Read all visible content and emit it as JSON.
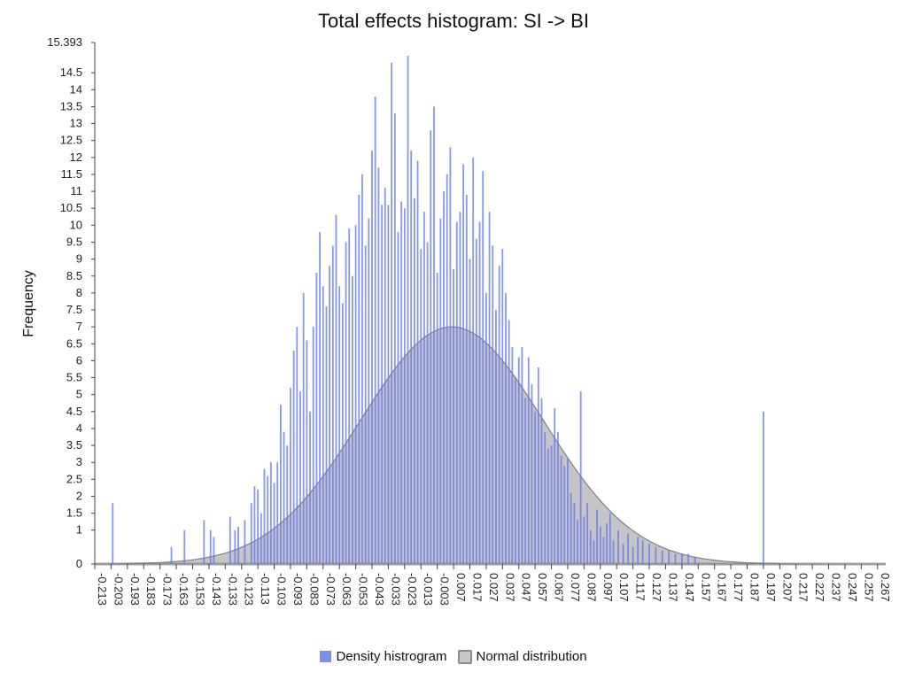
{
  "chart_data": {
    "type": "bar",
    "title": "Total effects histogram: SI -> BI",
    "xlabel": "",
    "ylabel": "Frequency",
    "xlim": [
      -0.213,
      0.272
    ],
    "ylim": [
      0,
      15.393
    ],
    "x_ticks": [
      "-0.213",
      "-0.203",
      "-0.193",
      "-0.183",
      "-0.173",
      "-0.163",
      "-0.153",
      "-0.143",
      "-0.133",
      "-0.123",
      "-0.113",
      "-0.103",
      "-0.093",
      "-0.083",
      "-0.073",
      "-0.063",
      "-0.053",
      "-0.043",
      "-0.033",
      "-0.023",
      "-0.013",
      "-0.003",
      "0.007",
      "0.017",
      "0.027",
      "0.037",
      "0.047",
      "0.057",
      "0.067",
      "0.077",
      "0.087",
      "0.097",
      "0.107",
      "0.117",
      "0.127",
      "0.137",
      "0.147",
      "0.157",
      "0.167",
      "0.177",
      "0.187",
      "0.197",
      "0.207",
      "0.217",
      "0.227",
      "0.237",
      "0.247",
      "0.257",
      "0.267"
    ],
    "y_ticks": [
      "0",
      "1",
      "1.5",
      "2",
      "2.5",
      "3",
      "3.5",
      "4",
      "4.5",
      "5",
      "5.5",
      "6",
      "6.5",
      "7",
      "7.5",
      "8",
      "8.5",
      "9",
      "9.5",
      "10",
      "10.5",
      "11",
      "11.5",
      "12",
      "12.5",
      "13",
      "13.5",
      "14",
      "14.5",
      "15.393"
    ],
    "series": [
      {
        "name": "Density histrogram",
        "color": "#7b8fef",
        "x": [
          -0.202,
          -0.166,
          -0.158,
          -0.146,
          -0.142,
          -0.14,
          -0.13,
          -0.127,
          -0.125,
          -0.121,
          -0.117,
          -0.115,
          -0.113,
          -0.111,
          -0.109,
          -0.107,
          -0.105,
          -0.103,
          -0.101,
          -0.099,
          -0.097,
          -0.095,
          -0.093,
          -0.091,
          -0.089,
          -0.087,
          -0.085,
          -0.083,
          -0.081,
          -0.079,
          -0.077,
          -0.075,
          -0.073,
          -0.071,
          -0.069,
          -0.067,
          -0.065,
          -0.063,
          -0.061,
          -0.059,
          -0.057,
          -0.055,
          -0.053,
          -0.051,
          -0.049,
          -0.047,
          -0.045,
          -0.043,
          -0.041,
          -0.039,
          -0.037,
          -0.035,
          -0.033,
          -0.031,
          -0.029,
          -0.027,
          -0.025,
          -0.023,
          -0.021,
          -0.019,
          -0.017,
          -0.015,
          -0.013,
          -0.011,
          -0.009,
          -0.007,
          -0.005,
          -0.003,
          -0.001,
          0.001,
          0.003,
          0.005,
          0.007,
          0.009,
          0.011,
          0.013,
          0.015,
          0.017,
          0.019,
          0.021,
          0.023,
          0.025,
          0.027,
          0.029,
          0.031,
          0.033,
          0.035,
          0.037,
          0.039,
          0.041,
          0.043,
          0.045,
          0.047,
          0.049,
          0.051,
          0.053,
          0.055,
          0.057,
          0.059,
          0.061,
          0.063,
          0.065,
          0.067,
          0.069,
          0.071,
          0.073,
          0.075,
          0.077,
          0.079,
          0.081,
          0.083,
          0.085,
          0.087,
          0.089,
          0.091,
          0.093,
          0.095,
          0.097,
          0.099,
          0.101,
          0.103,
          0.105,
          0.108,
          0.111,
          0.114,
          0.117,
          0.12,
          0.123,
          0.127,
          0.131,
          0.135,
          0.139,
          0.143,
          0.147,
          0.151,
          0.155,
          0.197
        ],
        "values": [
          1.8,
          0.5,
          1.0,
          1.3,
          1.0,
          0.8,
          1.4,
          1.0,
          1.1,
          1.3,
          1.8,
          2.3,
          2.2,
          1.5,
          2.8,
          2.6,
          3.0,
          2.4,
          3.0,
          4.7,
          3.9,
          3.5,
          5.2,
          6.3,
          7.0,
          5.1,
          8.0,
          6.6,
          4.5,
          7.0,
          8.6,
          9.8,
          8.2,
          7.6,
          8.8,
          9.4,
          10.3,
          8.2,
          7.7,
          9.5,
          9.9,
          8.5,
          10.0,
          10.9,
          11.5,
          9.4,
          10.2,
          12.2,
          13.8,
          11.7,
          10.6,
          11.1,
          10.6,
          14.8,
          13.3,
          9.8,
          10.7,
          10.5,
          15.0,
          12.2,
          10.8,
          11.9,
          9.3,
          10.4,
          9.5,
          12.8,
          13.5,
          8.6,
          10.2,
          11.0,
          11.5,
          12.3,
          8.7,
          10.1,
          10.4,
          11.8,
          10.9,
          9.0,
          12.0,
          9.6,
          10.1,
          11.6,
          8.0,
          10.4,
          9.4,
          7.5,
          8.8,
          9.3,
          8.0,
          7.2,
          6.4,
          5.5,
          6.1,
          6.4,
          4.9,
          6.1,
          5.3,
          4.5,
          5.8,
          4.9,
          3.9,
          3.4,
          3.5,
          4.6,
          3.9,
          3.2,
          2.9,
          3.1,
          2.1,
          1.8,
          1.3,
          5.1,
          1.4,
          1.8,
          1.0,
          0.7,
          1.6,
          1.1,
          0.8,
          1.2,
          1.5,
          0.7,
          1.0,
          0.6,
          0.9,
          0.5,
          0.8,
          0.7,
          0.6,
          0.5,
          0.4,
          0.4,
          0.3,
          0.3,
          0.3,
          0.2,
          4.5
        ]
      },
      {
        "name": "Normal distribution",
        "color": "#c8c8c8",
        "mean": 0.006,
        "std": 0.056,
        "peak": 7.0
      }
    ],
    "legend_position": "bottom",
    "grid": false
  }
}
